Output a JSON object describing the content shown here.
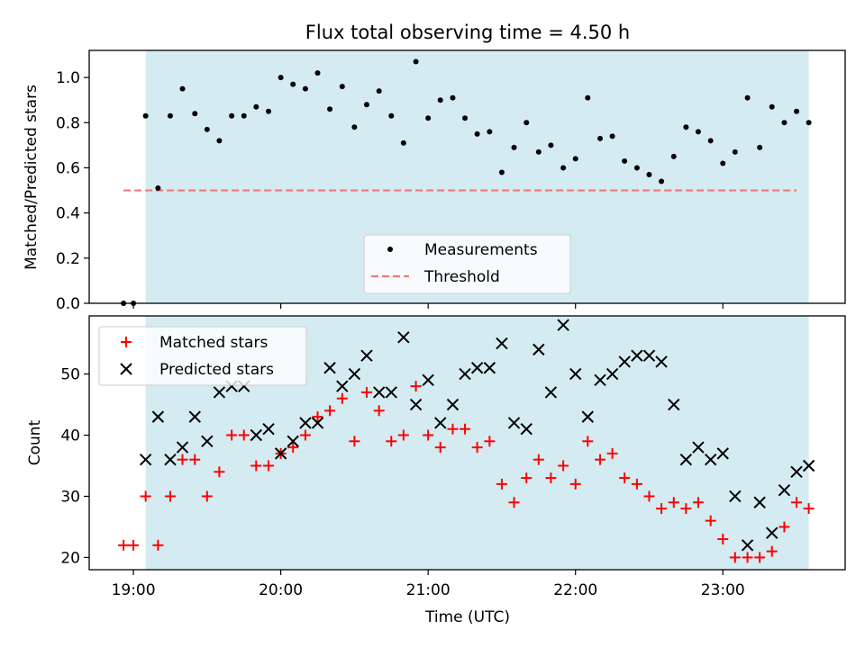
{
  "chart_data": [
    {
      "type": "scatter",
      "title": "Flux total observing time = 4.50 h",
      "ylabel": "Matched/Predicted stars",
      "ylim": [
        0,
        1.12
      ],
      "y_ticks": [
        0.0,
        0.2,
        0.4,
        0.6,
        0.8,
        1.0
      ],
      "y_tick_labels": [
        "0.0",
        "0.2",
        "0.4",
        "0.6",
        "0.8",
        "1.0"
      ],
      "xlim": [
        -0.3,
        4.83
      ],
      "observing_window": [
        0.083,
        4.583
      ],
      "shade_color": "#d4ebf2",
      "legend": {
        "placement": "lower-center"
      },
      "series": [
        {
          "name": "Measurements",
          "marker": "dot",
          "color": "#000000",
          "x": [
            -0.067,
            0.0,
            0.083,
            0.167,
            0.25,
            0.333,
            0.417,
            0.5,
            0.583,
            0.667,
            0.75,
            0.833,
            0.917,
            1.0,
            1.083,
            1.167,
            1.25,
            1.333,
            1.417,
            1.5,
            1.583,
            1.667,
            1.75,
            1.833,
            1.917,
            2.0,
            2.083,
            2.167,
            2.25,
            2.333,
            2.417,
            2.5,
            2.583,
            2.667,
            2.75,
            2.833,
            2.917,
            3.0,
            3.083,
            3.167,
            3.25,
            3.333,
            3.417,
            3.5,
            3.583,
            3.667,
            3.75,
            3.833,
            3.917,
            4.0,
            4.083,
            4.167,
            4.25,
            4.333,
            4.417,
            4.5,
            4.583
          ],
          "y": [
            0.0,
            0.0,
            0.83,
            0.51,
            0.83,
            0.95,
            0.84,
            0.77,
            0.72,
            0.83,
            0.83,
            0.87,
            0.85,
            1.0,
            0.97,
            0.95,
            1.02,
            0.86,
            0.96,
            0.78,
            0.88,
            0.94,
            0.83,
            0.71,
            1.07,
            0.82,
            0.9,
            0.91,
            0.82,
            0.75,
            0.76,
            0.58,
            0.69,
            0.8,
            0.67,
            0.7,
            0.6,
            0.64,
            0.91,
            0.73,
            0.74,
            0.63,
            0.6,
            0.57,
            0.54,
            0.65,
            0.78,
            0.76,
            0.72,
            0.62,
            0.67,
            0.91,
            0.69,
            0.87,
            0.8,
            0.85,
            0.8
          ]
        },
        {
          "name": "Threshold",
          "type": "line",
          "style": "dashed",
          "color": "#f07878",
          "x": [
            -0.067,
            4.5
          ],
          "y": [
            0.5,
            0.5
          ]
        }
      ]
    },
    {
      "type": "scatter",
      "xlabel": "Time (UTC)",
      "ylabel": "Count",
      "ylim": [
        18,
        59.5
      ],
      "y_ticks": [
        20,
        30,
        40,
        50
      ],
      "y_tick_labels": [
        "20",
        "30",
        "40",
        "50"
      ],
      "xlim": [
        -0.3,
        4.83
      ],
      "x_ticks": [
        0,
        1,
        2,
        3,
        4
      ],
      "x_tick_labels": [
        "19:00",
        "20:00",
        "21:00",
        "22:00",
        "23:00"
      ],
      "observing_window": [
        0.083,
        4.583
      ],
      "shade_color": "#d4ebf2",
      "legend": {
        "placement": "upper-left"
      },
      "series": [
        {
          "name": "Matched stars",
          "marker": "plus",
          "color": "#ff0000",
          "x": [
            -0.067,
            0.0,
            0.083,
            0.167,
            0.25,
            0.333,
            0.417,
            0.5,
            0.583,
            0.667,
            0.75,
            0.833,
            0.917,
            1.0,
            1.083,
            1.167,
            1.25,
            1.333,
            1.417,
            1.5,
            1.583,
            1.667,
            1.75,
            1.833,
            1.917,
            2.0,
            2.083,
            2.167,
            2.25,
            2.333,
            2.417,
            2.5,
            2.583,
            2.667,
            2.75,
            2.833,
            2.917,
            3.0,
            3.083,
            3.167,
            3.25,
            3.333,
            3.417,
            3.5,
            3.583,
            3.667,
            3.75,
            3.833,
            3.917,
            4.0,
            4.083,
            4.167,
            4.25,
            4.333,
            4.417,
            4.5,
            4.583
          ],
          "y": [
            22,
            22,
            30,
            22,
            30,
            36,
            36,
            30,
            34,
            40,
            40,
            35,
            35,
            37,
            38,
            40,
            43,
            44,
            46,
            39,
            47,
            44,
            39,
            40,
            48,
            40,
            38,
            41,
            41,
            38,
            39,
            32,
            29,
            33,
            36,
            33,
            35,
            32,
            39,
            36,
            37,
            33,
            32,
            30,
            28,
            29,
            28,
            29,
            26,
            23,
            20,
            20,
            20,
            21,
            25,
            29,
            28
          ]
        },
        {
          "name": "Predicted stars",
          "marker": "x",
          "color": "#000000",
          "x": [
            0.083,
            0.167,
            0.25,
            0.333,
            0.417,
            0.5,
            0.583,
            0.667,
            0.75,
            0.833,
            0.917,
            1.0,
            1.083,
            1.167,
            1.25,
            1.333,
            1.417,
            1.5,
            1.583,
            1.667,
            1.75,
            1.833,
            1.917,
            2.0,
            2.083,
            2.167,
            2.25,
            2.333,
            2.417,
            2.5,
            2.583,
            2.667,
            2.75,
            2.833,
            2.917,
            3.0,
            3.083,
            3.167,
            3.25,
            3.333,
            3.417,
            3.5,
            3.583,
            3.667,
            3.75,
            3.833,
            3.917,
            4.0,
            4.083,
            4.167,
            4.25,
            4.333,
            4.417,
            4.5,
            4.583
          ],
          "y": [
            36,
            43,
            36,
            38,
            43,
            39,
            47,
            48,
            48,
            40,
            41,
            37,
            39,
            42,
            42,
            51,
            48,
            50,
            53,
            47,
            47,
            56,
            45,
            49,
            42,
            45,
            50,
            51,
            51,
            55,
            42,
            41,
            54,
            47,
            58,
            50,
            43,
            49,
            50,
            52,
            53,
            53,
            52,
            45,
            36,
            38,
            36,
            37,
            30,
            22,
            29,
            24,
            31,
            34,
            35
          ]
        }
      ]
    }
  ]
}
